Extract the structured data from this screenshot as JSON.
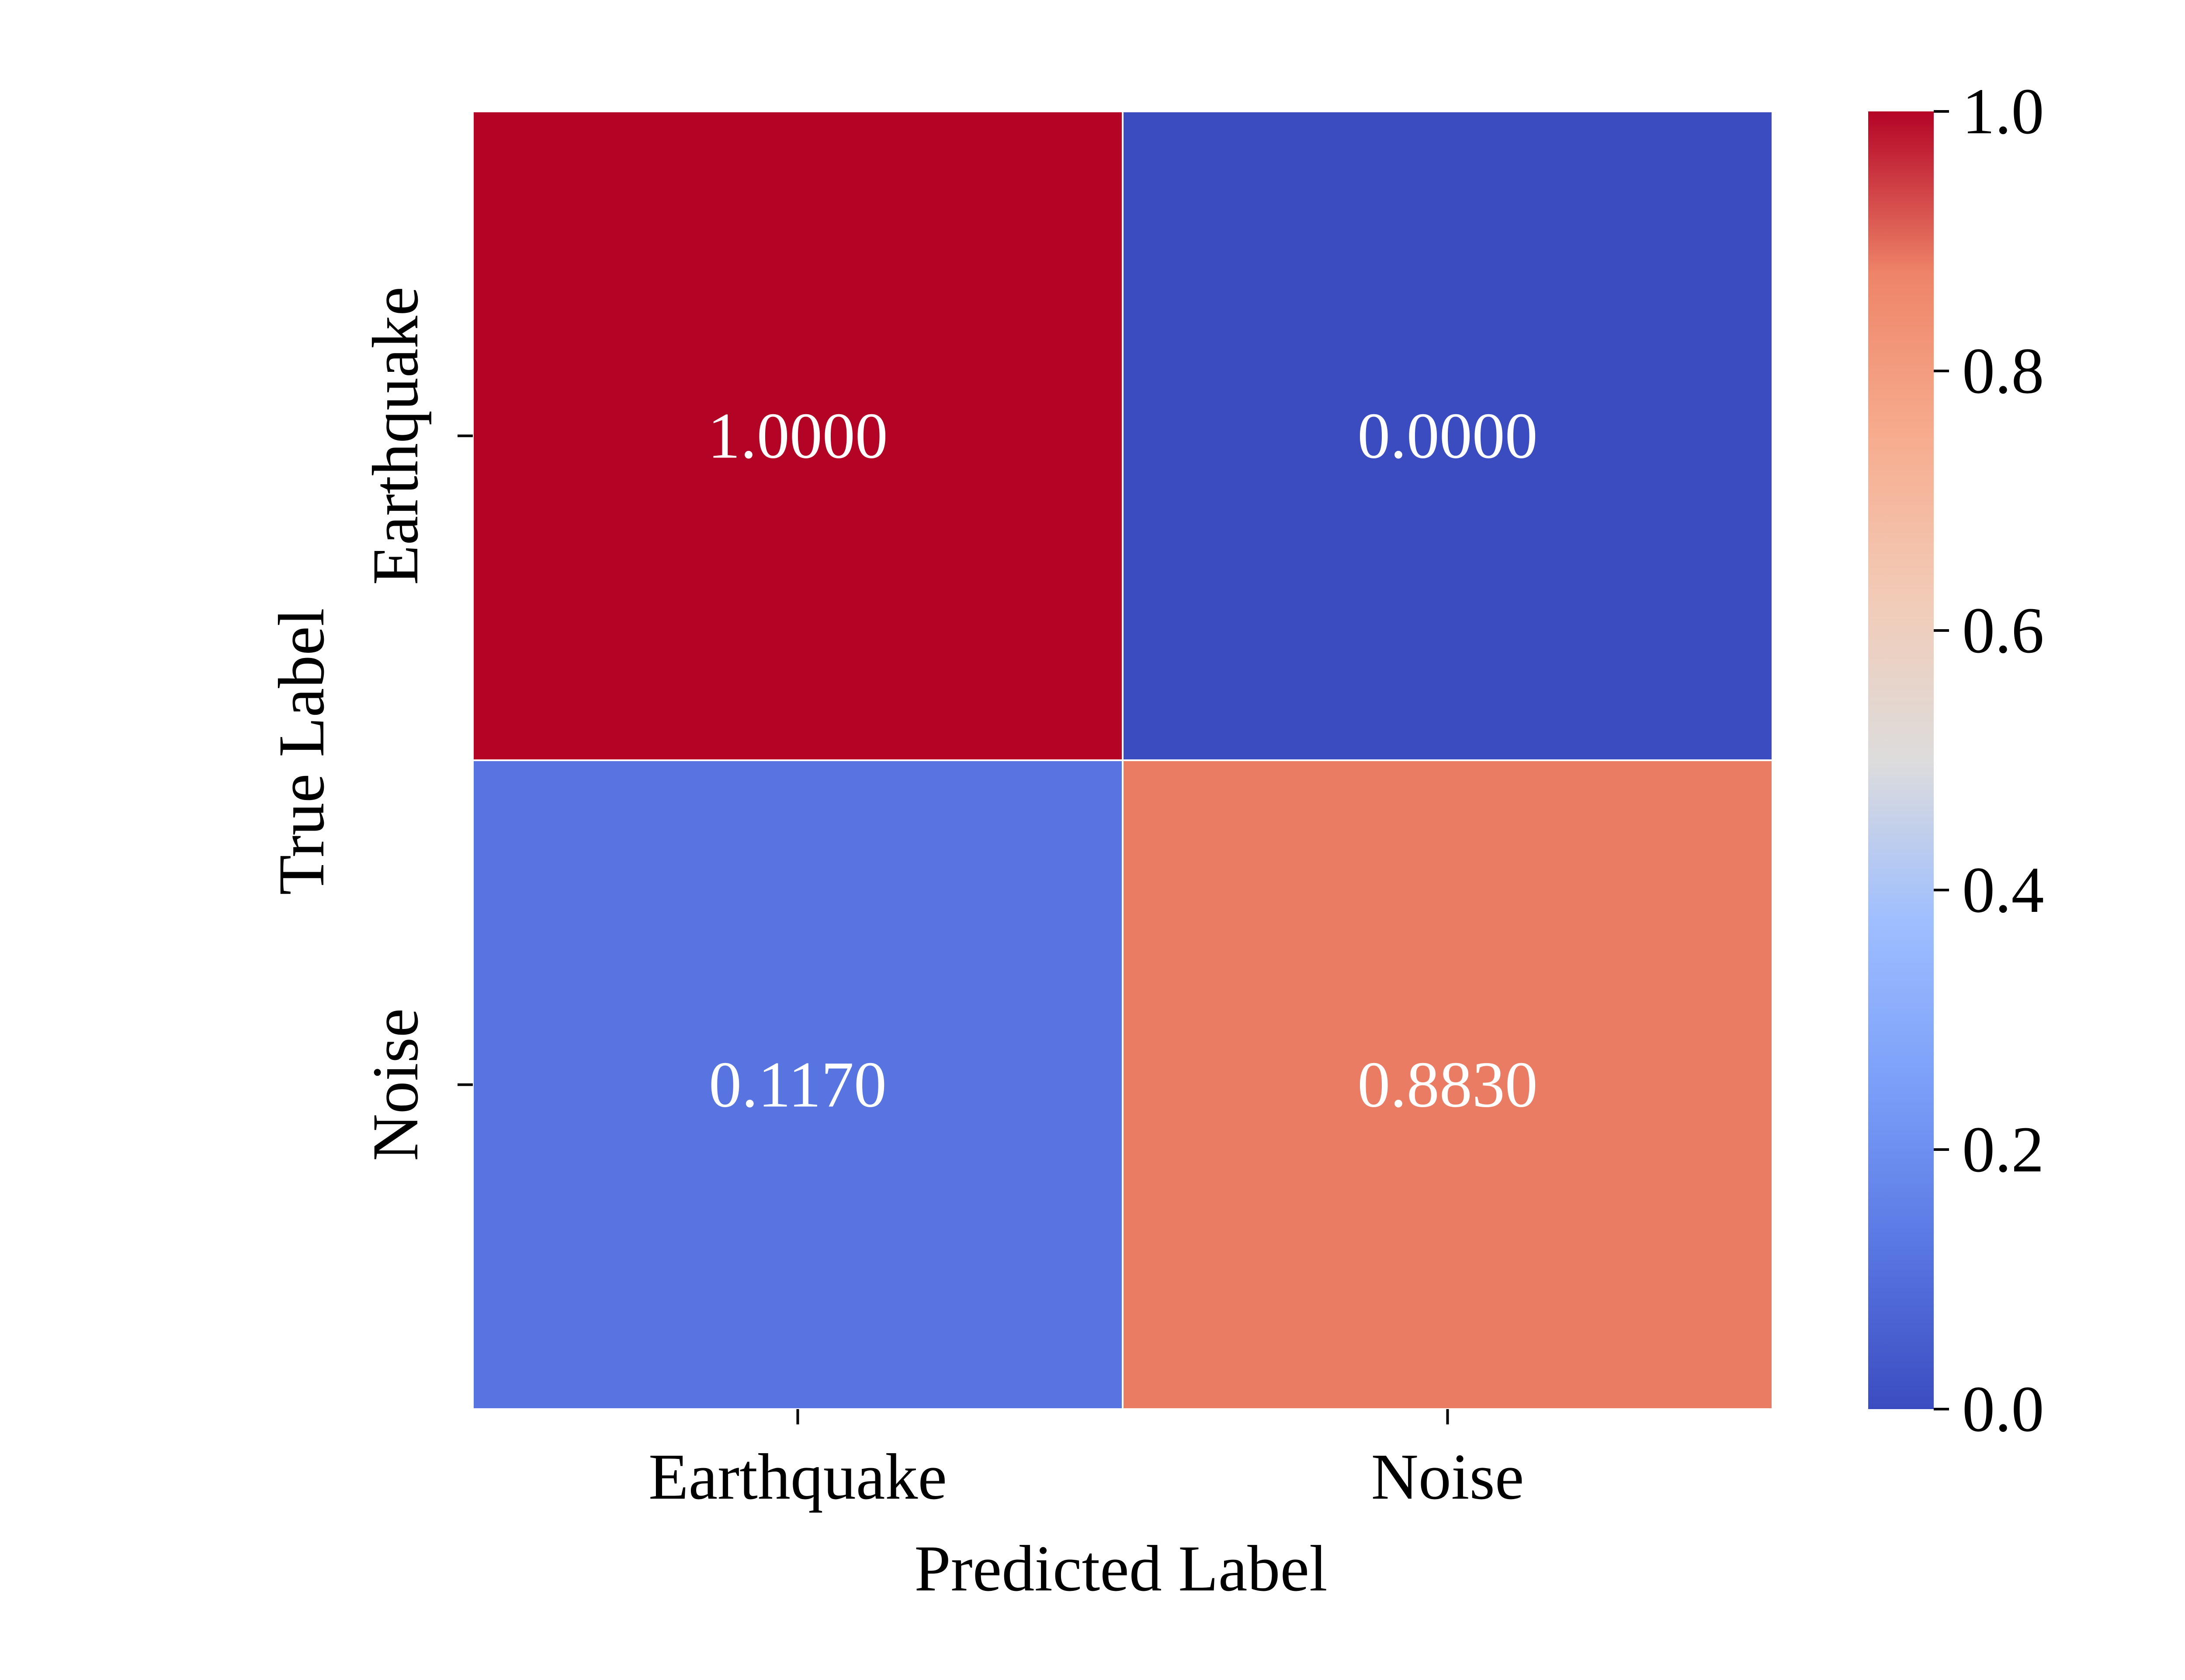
{
  "chart_data": {
    "type": "heatmap",
    "title": "",
    "xlabel": "Predicted Label",
    "ylabel": "True Label",
    "x_categories": [
      "Earthquake",
      "Noise"
    ],
    "y_categories": [
      "Earthquake",
      "Noise"
    ],
    "values": [
      [
        1.0,
        0.0
      ],
      [
        0.117,
        0.883
      ]
    ],
    "cell_labels": [
      [
        "1.0000",
        "0.0000"
      ],
      [
        "0.1170",
        "0.8830"
      ]
    ],
    "colormap": "coolwarm",
    "colorbar": {
      "range": [
        0.0,
        1.0
      ],
      "ticks": [
        0.0,
        0.2,
        0.4,
        0.6,
        0.8,
        1.0
      ],
      "tick_labels": [
        "0.0",
        "0.2",
        "0.4",
        "0.6",
        "0.8",
        "1.0"
      ],
      "placement": "right"
    },
    "grid": false
  }
}
